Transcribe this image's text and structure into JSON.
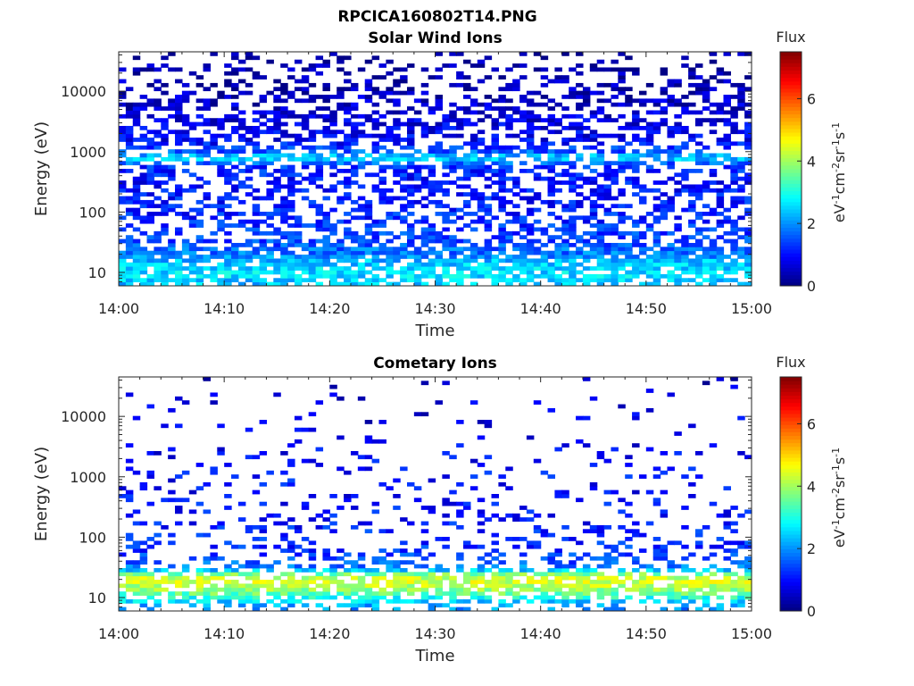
{
  "figure": {
    "title": "RPCICA160802T14.PNG"
  },
  "chart_data": [
    {
      "type": "heatmap",
      "title": "Solar Wind Ions",
      "xlabel": "Time",
      "ylabel": "Energy (eV)",
      "x_ticks": [
        "14:00",
        "14:10",
        "14:20",
        "14:30",
        "14:40",
        "14:50",
        "15:00"
      ],
      "x_range": [
        "14:00",
        "15:00"
      ],
      "y_scale": "log",
      "y_ticks": [
        10,
        100,
        1000,
        10000
      ],
      "y_tick_labels": [
        "10",
        "100",
        "1000",
        "10000"
      ],
      "y_range": [
        6,
        45000
      ],
      "colorbar": {
        "title": "Flux",
        "label": "eV-1cm-2sr-1s-1",
        "range": [
          0,
          7.5
        ],
        "ticks": [
          0,
          2,
          4,
          6
        ],
        "tick_labels": [
          "0",
          "2",
          "4",
          "6"
        ],
        "colormap": "jet"
      },
      "intensity_profile": {
        "energy_eV": [
          7,
          9,
          12,
          16,
          20,
          25,
          30,
          40,
          55,
          80,
          150,
          300,
          600,
          800,
          1000,
          1500,
          2500,
          5000,
          10000,
          20000,
          40000
        ],
        "typical_flux": [
          2.4,
          2.6,
          2.5,
          2.3,
          1.8,
          1.7,
          1.5,
          1.4,
          1.3,
          1.2,
          1.1,
          1.0,
          1.3,
          2.6,
          1.6,
          0.9,
          0.8,
          0.6,
          0.4,
          0.3,
          0.2
        ],
        "occupancy": [
          0.6,
          0.75,
          0.85,
          0.8,
          0.8,
          0.75,
          0.55,
          0.5,
          0.45,
          0.4,
          0.45,
          0.5,
          0.55,
          0.7,
          0.55,
          0.5,
          0.55,
          0.45,
          0.35,
          0.25,
          0.15
        ]
      }
    },
    {
      "type": "heatmap",
      "title": "Cometary Ions",
      "xlabel": "Time",
      "ylabel": "Energy (eV)",
      "x_ticks": [
        "14:00",
        "14:10",
        "14:20",
        "14:30",
        "14:40",
        "14:50",
        "15:00"
      ],
      "x_range": [
        "14:00",
        "15:00"
      ],
      "y_scale": "log",
      "y_ticks": [
        10,
        100,
        1000,
        10000
      ],
      "y_tick_labels": [
        "10",
        "100",
        "1000",
        "10000"
      ],
      "y_range": [
        6,
        45000
      ],
      "colorbar": {
        "title": "Flux",
        "label": "eV-1cm-2sr-1s-1",
        "range": [
          0,
          7.5
        ],
        "ticks": [
          0,
          2,
          4,
          6
        ],
        "tick_labels": [
          "0",
          "2",
          "4",
          "6"
        ],
        "colormap": "jet"
      },
      "intensity_profile": {
        "energy_eV": [
          7,
          9,
          12,
          16,
          20,
          25,
          30,
          40,
          55,
          80,
          150,
          300,
          600,
          1000,
          2000,
          5000,
          10000,
          20000,
          40000
        ],
        "typical_flux": [
          2.0,
          2.6,
          3.6,
          4.2,
          4.4,
          3.6,
          2.0,
          1.5,
          1.3,
          1.2,
          1.1,
          1.0,
          1.0,
          1.0,
          0.9,
          0.8,
          0.7,
          0.6,
          0.5
        ],
        "occupancy": [
          0.35,
          0.5,
          0.75,
          0.8,
          0.8,
          0.7,
          0.5,
          0.35,
          0.3,
          0.25,
          0.2,
          0.15,
          0.12,
          0.1,
          0.09,
          0.07,
          0.05,
          0.04,
          0.03
        ]
      }
    }
  ]
}
